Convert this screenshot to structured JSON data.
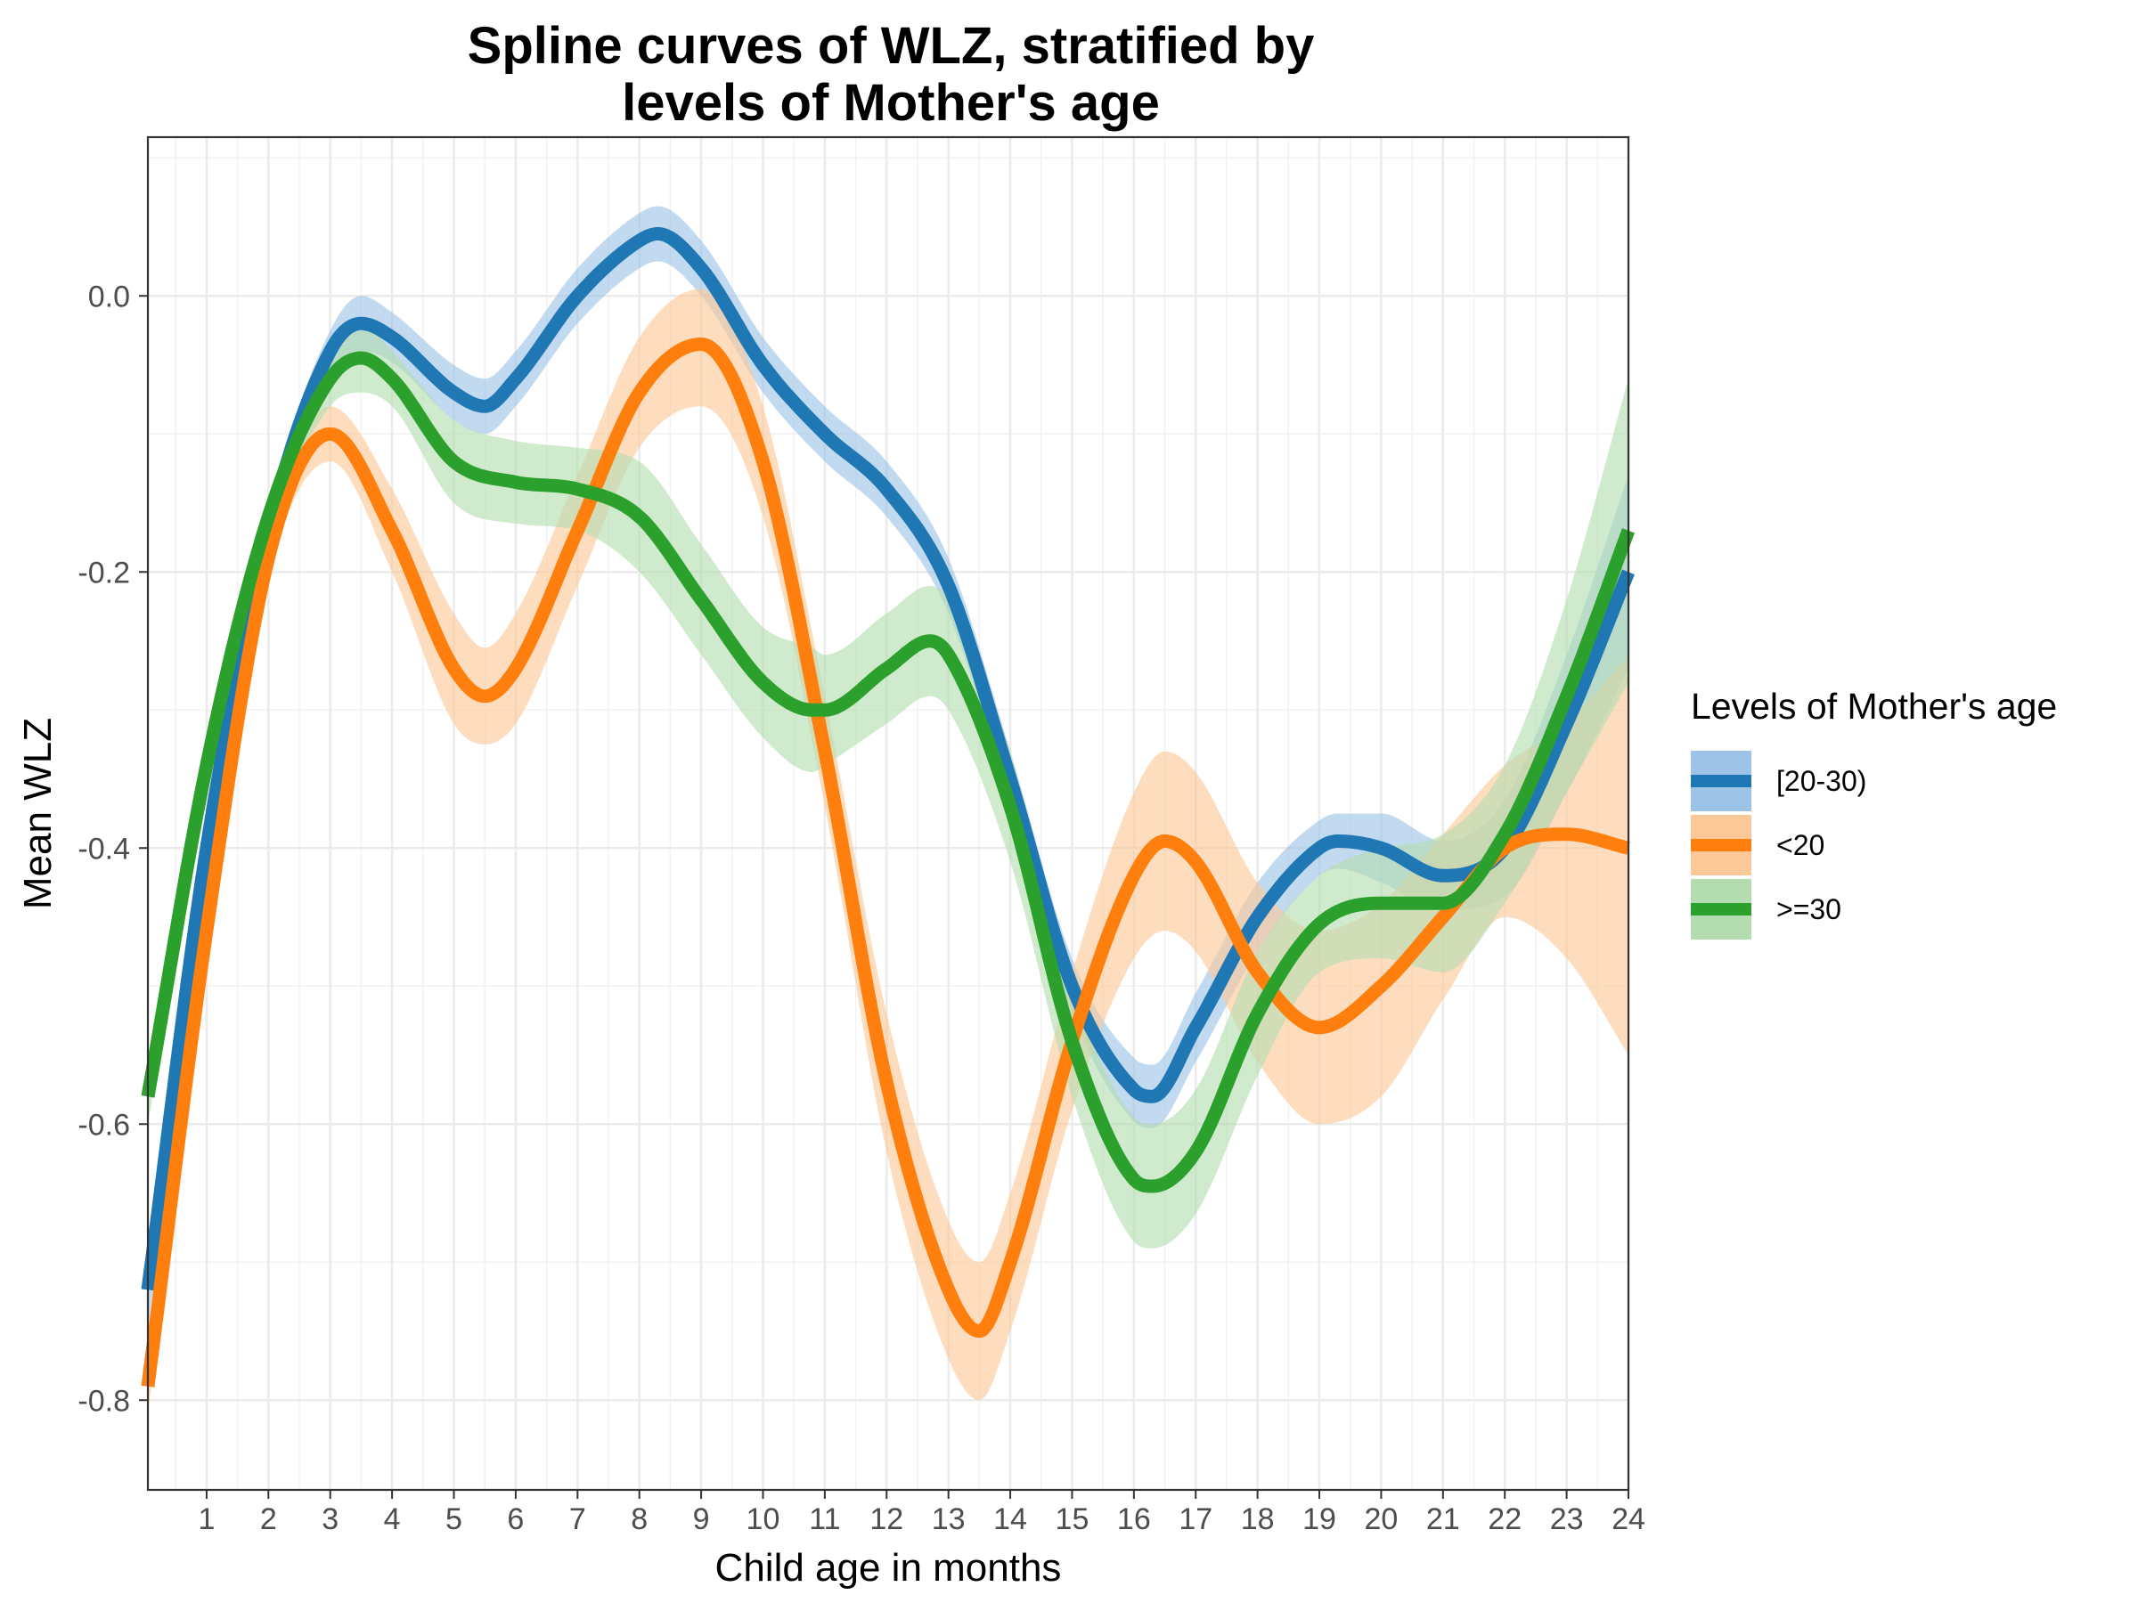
{
  "chart_data": {
    "type": "line",
    "title_lines": [
      "Spline curves of WLZ, stratified by",
      "levels of Mother's age"
    ],
    "xlabel": "Child age in months",
    "ylabel": "Mean WLZ",
    "xlim": [
      0.05,
      24
    ],
    "ylim": [
      -0.865,
      0.115
    ],
    "x_ticks": [
      1,
      2,
      3,
      4,
      5,
      6,
      7,
      8,
      9,
      10,
      11,
      12,
      13,
      14,
      15,
      16,
      17,
      18,
      19,
      20,
      21,
      22,
      23,
      24
    ],
    "y_ticks": [
      0.0,
      -0.2,
      -0.4,
      -0.6,
      -0.8
    ],
    "y_tick_labels": [
      "0.0",
      "-0.2",
      "-0.4",
      "-0.6",
      "-0.8"
    ],
    "grid": true,
    "legend_title": "Levels of Mother's age",
    "legend_position": "right",
    "series": [
      {
        "name": "[20-30)",
        "color": "#1F77B4",
        "band_color": "#9DC3E6",
        "x": [
          0.05,
          1,
          2,
          3,
          3.5,
          4,
          5,
          5.5,
          6,
          7,
          8,
          8.3,
          9,
          10,
          11,
          12,
          13,
          14,
          15,
          16,
          16.3,
          17,
          18,
          19,
          19.3,
          20,
          21,
          22,
          23,
          24
        ],
        "y": [
          -0.72,
          -0.4,
          -0.17,
          -0.04,
          -0.02,
          -0.03,
          -0.07,
          -0.08,
          -0.06,
          0.0,
          0.04,
          0.045,
          0.02,
          -0.05,
          -0.1,
          -0.14,
          -0.21,
          -0.35,
          -0.5,
          -0.575,
          -0.58,
          -0.53,
          -0.45,
          -0.4,
          -0.395,
          -0.4,
          -0.42,
          -0.4,
          -0.31,
          -0.2
        ],
        "lo": [
          -0.75,
          -0.42,
          -0.185,
          -0.055,
          -0.04,
          -0.048,
          -0.09,
          -0.1,
          -0.08,
          -0.02,
          0.02,
          0.025,
          0.0,
          -0.07,
          -0.12,
          -0.16,
          -0.23,
          -0.37,
          -0.52,
          -0.598,
          -0.603,
          -0.555,
          -0.475,
          -0.42,
          -0.415,
          -0.425,
          -0.445,
          -0.435,
          -0.36,
          -0.27
        ],
        "hi": [
          -0.69,
          -0.38,
          -0.155,
          -0.025,
          0.0,
          -0.012,
          -0.05,
          -0.06,
          -0.04,
          0.02,
          0.06,
          0.065,
          0.04,
          -0.03,
          -0.08,
          -0.12,
          -0.19,
          -0.33,
          -0.48,
          -0.552,
          -0.557,
          -0.505,
          -0.425,
          -0.38,
          -0.375,
          -0.375,
          -0.395,
          -0.365,
          -0.26,
          -0.13
        ]
      },
      {
        "name": "<20",
        "color": "#FF7F0E",
        "band_color": "#FDC898",
        "x": [
          0.05,
          1,
          2,
          3,
          4,
          5,
          5.5,
          6,
          7,
          8,
          9,
          10,
          11,
          12,
          13,
          13.5,
          14,
          15,
          16,
          16.5,
          17,
          18,
          19,
          20,
          21,
          22,
          23,
          24
        ],
        "y": [
          -0.79,
          -0.46,
          -0.19,
          -0.1,
          -0.17,
          -0.27,
          -0.29,
          -0.27,
          -0.17,
          -0.07,
          -0.035,
          -0.12,
          -0.33,
          -0.57,
          -0.72,
          -0.75,
          -0.7,
          -0.54,
          -0.42,
          -0.395,
          -0.41,
          -0.49,
          -0.53,
          -0.5,
          -0.45,
          -0.4,
          -0.39,
          -0.4
        ],
        "lo": [
          -0.81,
          -0.48,
          -0.205,
          -0.12,
          -0.2,
          -0.31,
          -0.325,
          -0.31,
          -0.21,
          -0.11,
          -0.08,
          -0.16,
          -0.37,
          -0.62,
          -0.77,
          -0.8,
          -0.75,
          -0.59,
          -0.48,
          -0.46,
          -0.475,
          -0.555,
          -0.6,
          -0.58,
          -0.51,
          -0.45,
          -0.48,
          -0.55
        ],
        "hi": [
          -0.77,
          -0.44,
          -0.175,
          -0.08,
          -0.14,
          -0.23,
          -0.255,
          -0.23,
          -0.13,
          -0.03,
          0.005,
          -0.08,
          -0.29,
          -0.52,
          -0.67,
          -0.7,
          -0.65,
          -0.49,
          -0.36,
          -0.33,
          -0.345,
          -0.425,
          -0.46,
          -0.44,
          -0.39,
          -0.34,
          -0.31,
          -0.26
        ]
      },
      {
        "name": ">=30",
        "color": "#2CA02C",
        "band_color": "#B3DDB0",
        "x": [
          0.05,
          1,
          2,
          3,
          3.5,
          4,
          5,
          6,
          7,
          8,
          9,
          10,
          10.8,
          11,
          12,
          12.7,
          13,
          14,
          15,
          16,
          16.3,
          17,
          18,
          19,
          20,
          21,
          22,
          23,
          24
        ],
        "y": [
          -0.58,
          -0.34,
          -0.16,
          -0.06,
          -0.045,
          -0.06,
          -0.12,
          -0.135,
          -0.14,
          -0.16,
          -0.22,
          -0.28,
          -0.3,
          -0.3,
          -0.27,
          -0.25,
          -0.26,
          -0.37,
          -0.54,
          -0.64,
          -0.645,
          -0.62,
          -0.52,
          -0.455,
          -0.44,
          -0.44,
          -0.39,
          -0.29,
          -0.17
        ],
        "lo": [
          -0.6,
          -0.36,
          -0.175,
          -0.08,
          -0.07,
          -0.08,
          -0.15,
          -0.165,
          -0.17,
          -0.2,
          -0.26,
          -0.32,
          -0.345,
          -0.34,
          -0.31,
          -0.29,
          -0.3,
          -0.41,
          -0.58,
          -0.685,
          -0.69,
          -0.665,
          -0.565,
          -0.49,
          -0.48,
          -0.49,
          -0.44,
          -0.36,
          -0.28
        ],
        "hi": [
          -0.56,
          -0.32,
          -0.145,
          -0.04,
          -0.02,
          -0.04,
          -0.09,
          -0.105,
          -0.11,
          -0.12,
          -0.18,
          -0.24,
          -0.255,
          -0.26,
          -0.23,
          -0.21,
          -0.22,
          -0.33,
          -0.5,
          -0.595,
          -0.6,
          -0.575,
          -0.475,
          -0.42,
          -0.4,
          -0.39,
          -0.34,
          -0.22,
          -0.06
        ]
      }
    ]
  }
}
